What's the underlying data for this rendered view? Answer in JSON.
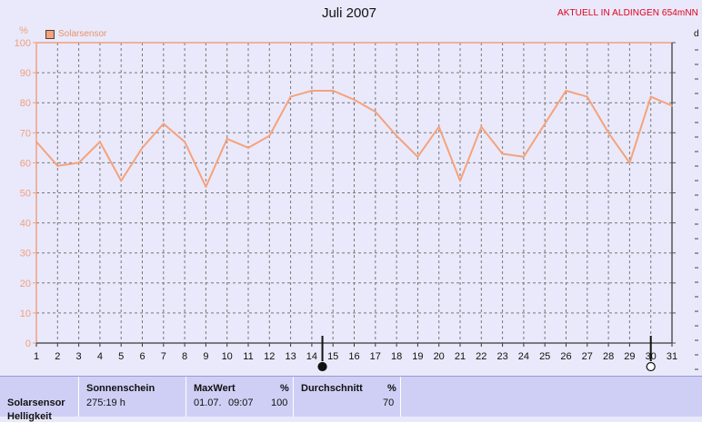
{
  "header": {
    "title": "Juli 2007",
    "station": "AKTUELL IN ALDINGEN 654mNN",
    "edge_label": "d"
  },
  "chart_data": {
    "type": "line",
    "title": "Juli 2007",
    "ylabel": "%",
    "xlabel": "",
    "ylim": [
      0,
      100
    ],
    "yticks": [
      0,
      10,
      20,
      30,
      40,
      50,
      60,
      70,
      80,
      90,
      100
    ],
    "xlim": [
      1,
      31
    ],
    "categories": [
      1,
      2,
      3,
      4,
      5,
      6,
      7,
      8,
      9,
      10,
      11,
      12,
      13,
      14,
      15,
      16,
      17,
      18,
      19,
      20,
      21,
      22,
      23,
      24,
      25,
      26,
      27,
      28,
      29,
      30,
      31
    ],
    "grid": true,
    "legend_position": "top-left",
    "colors": {
      "series": "#f6a27a",
      "axis": "#f0a080",
      "grid": "#777777",
      "background": "#e9e9fb"
    },
    "series": [
      {
        "name": "Solarsensor",
        "values": [
          67,
          59,
          60,
          67,
          54,
          65,
          73,
          67,
          52,
          68,
          65,
          69,
          82,
          84,
          84,
          81,
          77,
          69,
          62,
          72,
          54,
          72,
          63,
          62,
          73,
          84,
          82,
          70,
          60,
          82,
          79
        ]
      }
    ],
    "moon_phases": [
      {
        "day": 14.5,
        "phase": "new-moon"
      },
      {
        "day": 30,
        "phase": "full-moon"
      }
    ]
  },
  "stats": {
    "row_label": "Solarsensor",
    "row_label_sub": "Helligkeit",
    "sunshine": {
      "header": "Sonnenschein",
      "value": "275:19 h"
    },
    "max": {
      "header": "MaxWert",
      "unit": "%",
      "date": "01.07.",
      "time": "09:07",
      "value": "100"
    },
    "average": {
      "header": "Durchschnitt",
      "unit": "%",
      "value": "70"
    }
  }
}
